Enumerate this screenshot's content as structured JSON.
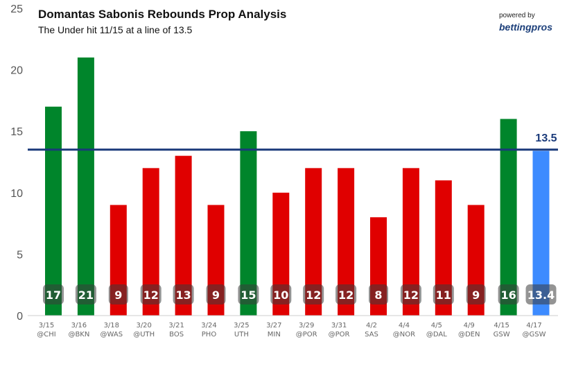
{
  "title": "Domantas Sabonis Rebounds Prop Analysis",
  "subtitle": "The Under hit 11/15 at a line of 13.5",
  "powered_by": "powered by",
  "brand": "bettingpros",
  "colors": {
    "over": "#00852b",
    "under": "#e00000",
    "projection": "#3d8bff",
    "line": "#1a3a7a"
  },
  "chart_data": {
    "type": "bar",
    "title": "Domantas Sabonis Rebounds Prop Analysis",
    "subtitle": "The Under hit 11/15 at a line of 13.5",
    "categories": [
      {
        "date": "3/15",
        "opp": "@CHI"
      },
      {
        "date": "3/16",
        "opp": "@BKN"
      },
      {
        "date": "3/18",
        "opp": "@WAS"
      },
      {
        "date": "3/20",
        "opp": "@UTH"
      },
      {
        "date": "3/21",
        "opp": "BOS"
      },
      {
        "date": "3/24",
        "opp": "PHO"
      },
      {
        "date": "3/25",
        "opp": "UTH"
      },
      {
        "date": "3/27",
        "opp": "MIN"
      },
      {
        "date": "3/29",
        "opp": "@POR"
      },
      {
        "date": "3/31",
        "opp": "@POR"
      },
      {
        "date": "4/2",
        "opp": "SAS"
      },
      {
        "date": "4/4",
        "opp": "@NOR"
      },
      {
        "date": "4/5",
        "opp": "@DAL"
      },
      {
        "date": "4/9",
        "opp": "@DEN"
      },
      {
        "date": "4/15",
        "opp": "GSW"
      },
      {
        "date": "4/17",
        "opp": "@GSW"
      }
    ],
    "values": [
      17,
      21,
      9,
      12,
      13,
      9,
      15,
      10,
      12,
      12,
      8,
      12,
      11,
      9,
      16,
      13.4
    ],
    "value_labels": [
      "17",
      "21",
      "9",
      "12",
      "13",
      "9",
      "15",
      "10",
      "12",
      "12",
      "8",
      "12",
      "11",
      "9",
      "16",
      "13.4"
    ],
    "status": [
      "over",
      "over",
      "under",
      "under",
      "under",
      "under",
      "over",
      "under",
      "under",
      "under",
      "under",
      "under",
      "under",
      "under",
      "over",
      "projection"
    ],
    "line": 13.5,
    "line_label": "13.5",
    "ylim": [
      0,
      25
    ],
    "yticks": [
      "0",
      "5",
      "10",
      "15",
      "20",
      "25"
    ],
    "grid": false
  }
}
